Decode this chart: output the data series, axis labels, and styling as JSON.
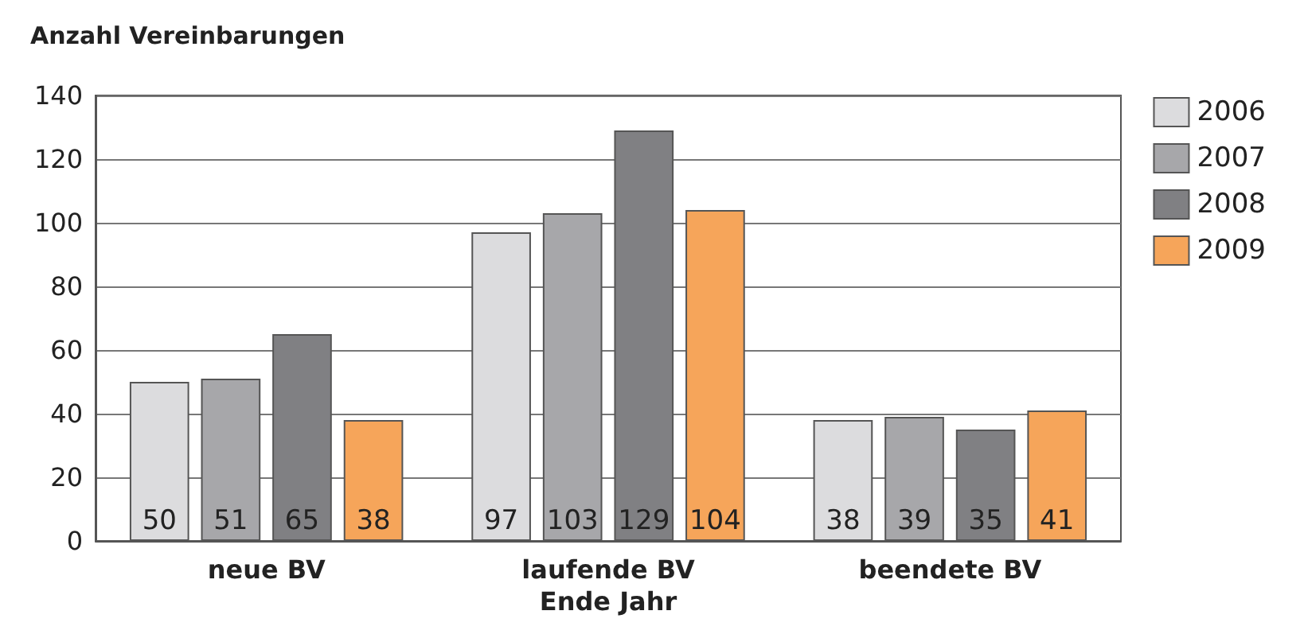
{
  "chart_data": {
    "type": "bar",
    "ylabel": "Anzahl Vereinbarungen",
    "categories": [
      "neue BV",
      "laufende BV\nEnde Jahr",
      "beendete BV"
    ],
    "series": [
      {
        "name": "2006",
        "color": "#dcdcde",
        "values": [
          50,
          97,
          38
        ]
      },
      {
        "name": "2007",
        "color": "#a7a7aa",
        "values": [
          51,
          103,
          39
        ]
      },
      {
        "name": "2008",
        "color": "#808083",
        "values": [
          65,
          129,
          35
        ]
      },
      {
        "name": "2009",
        "color": "#f6a55a",
        "values": [
          38,
          104,
          41
        ]
      }
    ],
    "ylim": [
      0,
      140
    ],
    "yticks": [
      0,
      20,
      40,
      60,
      80,
      100,
      120,
      140
    ],
    "grid": "y",
    "legend": "right",
    "data_labels": true
  }
}
